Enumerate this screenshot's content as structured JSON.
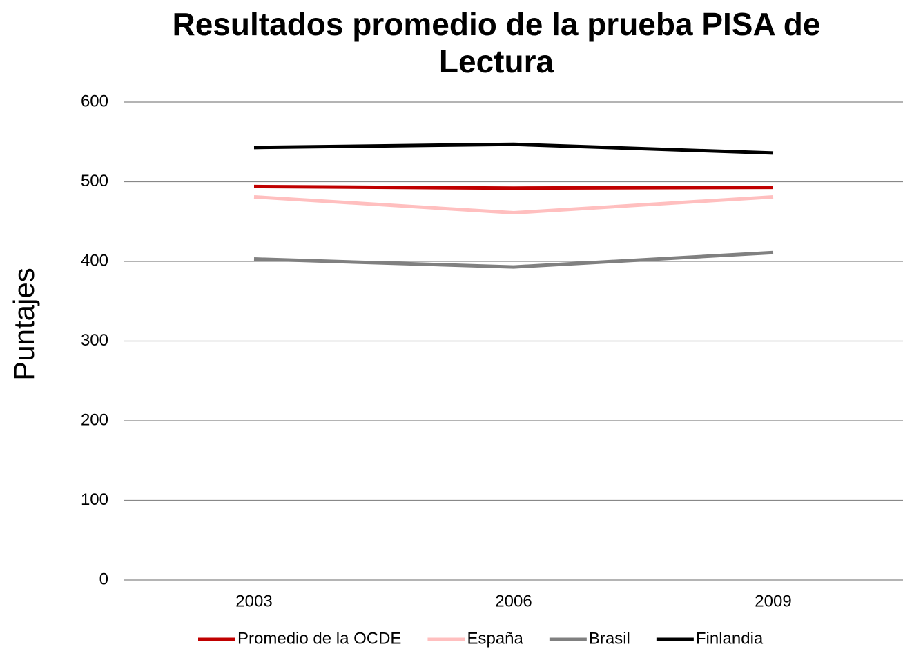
{
  "chart_data": {
    "type": "line",
    "title": "Resultados promedio de la prueba PISA de Lectura",
    "y_label": "Puntajes",
    "categories": [
      "2003",
      "2006",
      "2009"
    ],
    "series": [
      {
        "name": "Promedio de la OCDE",
        "color": "#c00000",
        "values": [
          494,
          492,
          493
        ]
      },
      {
        "name": "España",
        "color": "#ffbfbf",
        "values": [
          481,
          461,
          481
        ]
      },
      {
        "name": "Brasil",
        "color": "#808080",
        "values": [
          403,
          393,
          411
        ]
      },
      {
        "name": "Finlandia",
        "color": "#000000",
        "values": [
          543,
          547,
          536
        ]
      }
    ],
    "ylim": [
      0,
      600
    ],
    "yticks": [
      0,
      100,
      200,
      300,
      400,
      500,
      600
    ],
    "grid": true,
    "legend": "bottom"
  }
}
